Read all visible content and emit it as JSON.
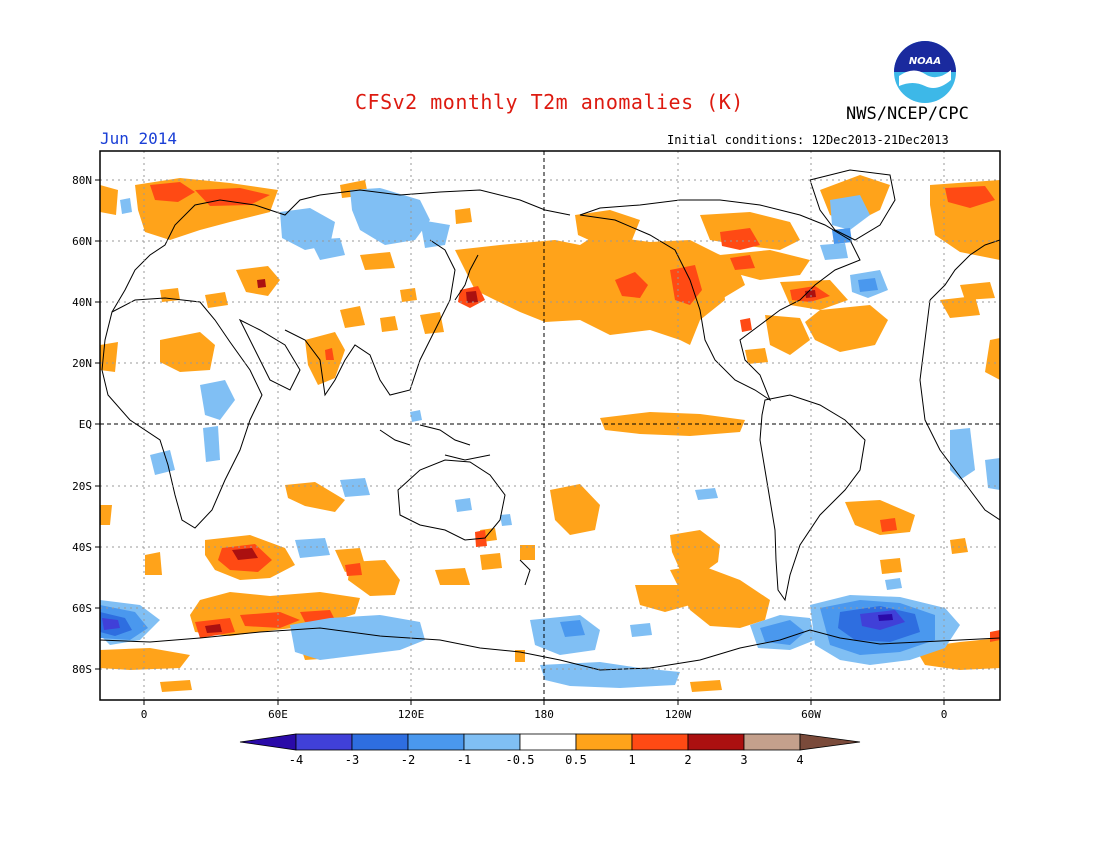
{
  "header": {
    "title": "CFSv2 monthly T2m anomalies (K)",
    "credit": "NWS/NCEP/CPC",
    "valid_month": "Jun 2014",
    "initial_conditions": "Initial conditions: 12Dec2013-21Dec2013",
    "logo_text": "NOAA"
  },
  "map": {
    "projection": "cylindrical equidistant",
    "lat_labels": [
      "80N",
      "60N",
      "40N",
      "20N",
      "EQ",
      "20S",
      "40S",
      "60S",
      "80S"
    ],
    "lon_labels": [
      "0",
      "60E",
      "120E",
      "180",
      "120W",
      "60W",
      "0"
    ],
    "grid": "dotted"
  },
  "colorbar": {
    "labels": [
      "-4",
      "-3",
      "-2",
      "-1",
      "-0.5",
      "0.5",
      "1",
      "2",
      "3",
      "4"
    ],
    "colors": [
      "#2a0aa8",
      "#4040d8",
      "#2e6ee0",
      "#4a98ee",
      "#80bff4",
      "#ffffff",
      "#ffa31a",
      "#ff4a14",
      "#ab1010",
      "#c4a08c",
      "#7a4a3a"
    ]
  },
  "colors": {
    "warm1": "#ffa31a",
    "warm2": "#ff4a14",
    "warm3": "#ab1010",
    "cool1": "#80bff4",
    "cool2": "#4a98ee",
    "cool3": "#2e6ee0",
    "cool4": "#4040d8"
  }
}
